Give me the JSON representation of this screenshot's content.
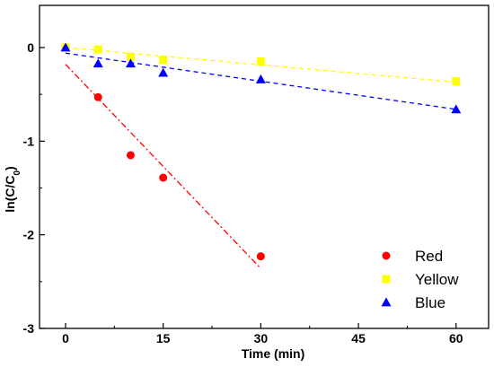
{
  "chart_data": {
    "type": "scatter",
    "xlabel": "Time (min)",
    "ylabel_main": "ln(C/C",
    "ylabel_sub": "0",
    "ylabel_end": ")",
    "xlim": [
      -4,
      65
    ],
    "ylim": [
      -3,
      0.45
    ],
    "xticks": [
      0,
      15,
      30,
      45,
      60
    ],
    "yticks": [
      0,
      -1,
      -2,
      -3
    ],
    "xtick_labels": [
      "0",
      "15",
      "30",
      "45",
      "60"
    ],
    "ytick_labels": [
      "0",
      "-1",
      "-2",
      "-3"
    ],
    "grid": false,
    "legend_position": "bottom-right",
    "series": [
      {
        "name": "Red",
        "color": "#ff0000",
        "marker": "circle",
        "x": [
          0,
          5,
          10,
          15,
          30
        ],
        "y": [
          0,
          -0.53,
          -1.15,
          -1.39,
          -2.23
        ],
        "fit": {
          "x": [
            0,
            30
          ],
          "y": [
            -0.18,
            -2.36
          ],
          "dash": "dashdot"
        }
      },
      {
        "name": "Yellow",
        "color": "#ffff00",
        "marker": "square",
        "x": [
          0,
          5,
          10,
          15,
          30,
          60
        ],
        "y": [
          0,
          -0.02,
          -0.1,
          -0.13,
          -0.15,
          -0.36
        ],
        "fit": {
          "x": [
            0,
            60
          ],
          "y": [
            0.0,
            -0.37
          ],
          "dash": "dash"
        }
      },
      {
        "name": "Blue",
        "color": "#0000ff",
        "marker": "triangle",
        "x": [
          0,
          5,
          10,
          15,
          30,
          60
        ],
        "y": [
          0,
          -0.17,
          -0.17,
          -0.27,
          -0.34,
          -0.66
        ],
        "fit": {
          "x": [
            0,
            60
          ],
          "y": [
            -0.06,
            -0.66
          ],
          "dash": "dash"
        }
      }
    ]
  }
}
